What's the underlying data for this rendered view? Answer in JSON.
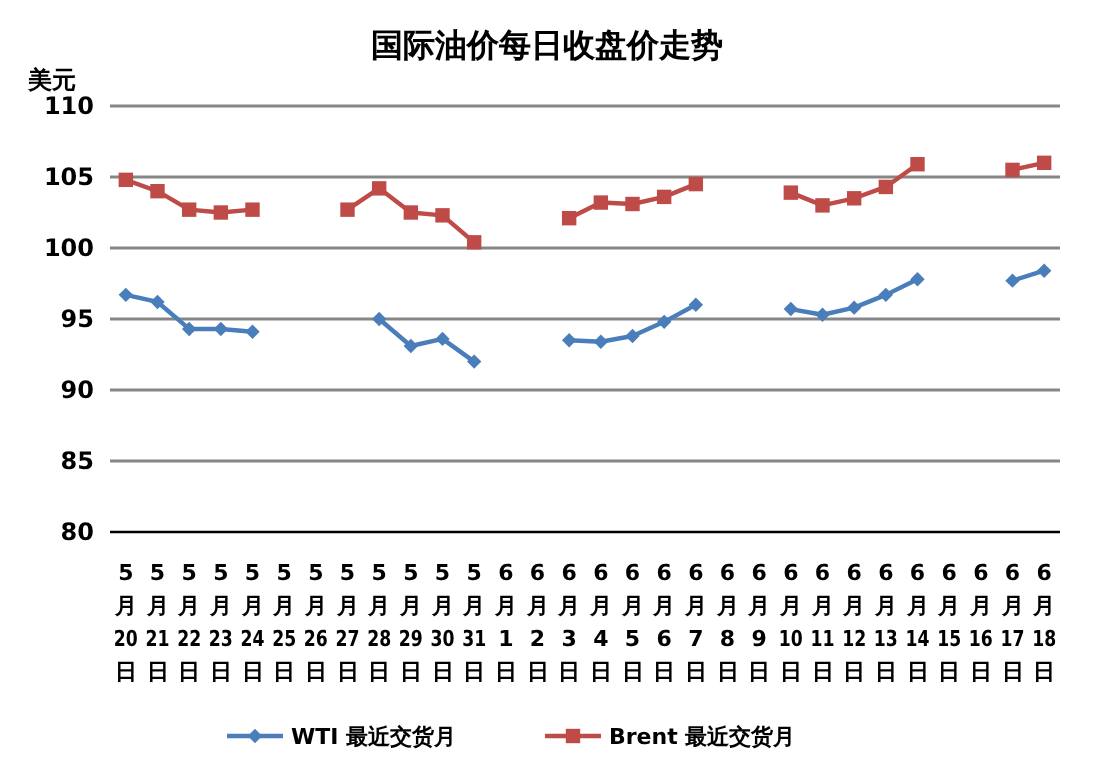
{
  "chart_data": {
    "type": "line",
    "title": "国际油价每日收盘价走势",
    "ylabel": "美元",
    "categories": [
      "5\n月\n20\n日",
      "5\n月\n21\n日",
      "5\n月\n22\n日",
      "5\n月\n23\n日",
      "5\n月\n24\n日",
      "5\n月\n25\n日",
      "5\n月\n26\n日",
      "5\n月\n27\n日",
      "5\n月\n28\n日",
      "5\n月\n29\n日",
      "5\n月\n30\n日",
      "5\n月\n31\n日",
      "6\n月\n1\n日",
      "6\n月\n2\n日",
      "6\n月\n3\n日",
      "6\n月\n4\n日",
      "6\n月\n5\n日",
      "6\n月\n6\n日",
      "6\n月\n7\n日",
      "6\n月\n8\n日",
      "6\n月\n9\n日",
      "6\n月\n10\n日",
      "6\n月\n11\n日",
      "6\n月\n12\n日",
      "6\n月\n13\n日",
      "6\n月\n14\n日",
      "6\n月\n15\n日",
      "6\n月\n16\n日",
      "6\n月\n17\n日",
      "6\n月\n18\n日"
    ],
    "series": [
      {
        "name": "WTI 最近交货月",
        "color": "#4a7ebb",
        "marker": "diamond",
        "values": [
          96.7,
          96.2,
          94.3,
          94.3,
          94.1,
          null,
          null,
          null,
          95.0,
          93.1,
          93.6,
          92.0,
          null,
          null,
          93.5,
          93.4,
          93.8,
          94.8,
          96.0,
          null,
          null,
          95.7,
          95.3,
          95.8,
          96.7,
          97.8,
          null,
          null,
          97.7,
          98.4
        ]
      },
      {
        "name": "Brent 最近交货月",
        "color": "#be4b48",
        "marker": "square",
        "values": [
          104.8,
          104.0,
          102.7,
          102.5,
          102.7,
          null,
          null,
          102.7,
          104.2,
          102.5,
          102.3,
          100.4,
          null,
          null,
          102.1,
          103.2,
          103.1,
          103.6,
          104.5,
          null,
          null,
          103.9,
          103.0,
          103.5,
          104.3,
          105.9,
          null,
          null,
          105.5,
          106.0
        ]
      }
    ],
    "ylim": [
      80,
      110
    ],
    "yticks": [
      80,
      85,
      90,
      95,
      100,
      105,
      110
    ],
    "grid": "y",
    "legend": "bottom"
  }
}
